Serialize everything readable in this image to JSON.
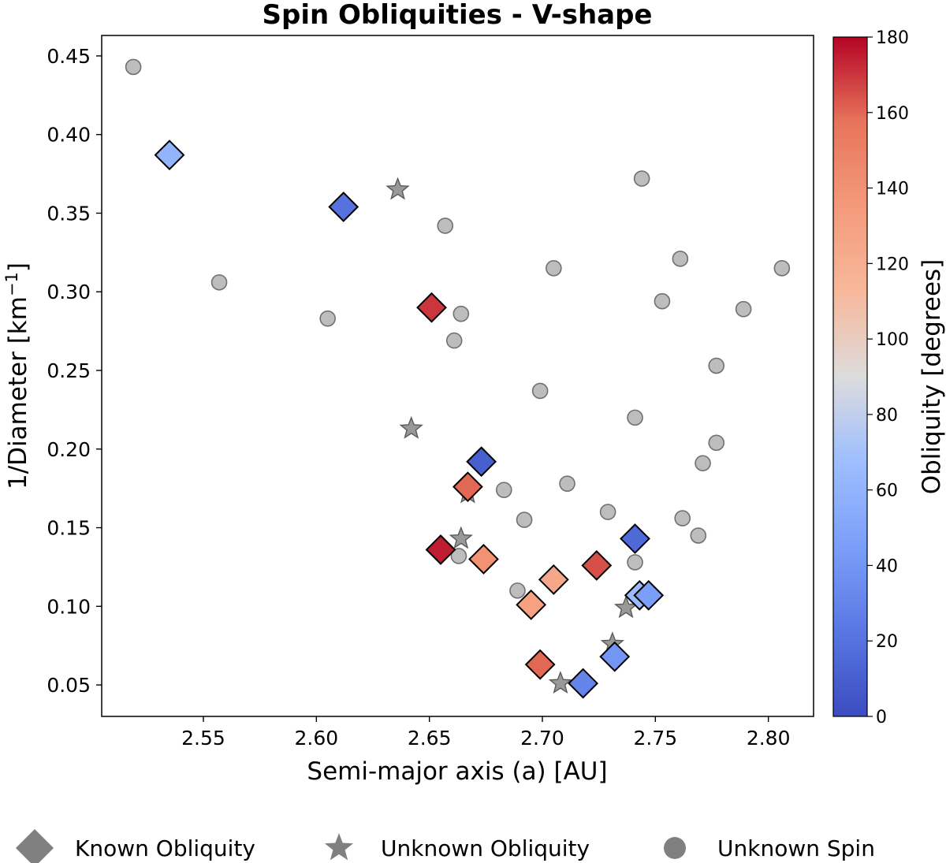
{
  "chart_data": {
    "type": "scatter",
    "title": "Spin Obliquities - V-shape",
    "xlabel": "Semi-major axis (a) [AU]",
    "ylabel": "1/Diameter [km",
    "ylabel_sup": "−1",
    "ylabel_end": "]",
    "xlim": [
      2.505,
      2.82
    ],
    "ylim": [
      0.03,
      0.463
    ],
    "xticks": [
      "2.55",
      "2.60",
      "2.65",
      "2.70",
      "2.75",
      "2.80"
    ],
    "yticks": [
      "0.05",
      "0.10",
      "0.15",
      "0.20",
      "0.25",
      "0.30",
      "0.35",
      "0.40",
      "0.45"
    ],
    "colorbar": {
      "label": "Obliquity [degrees]",
      "range": [
        0,
        180
      ],
      "ticks": [
        "0",
        "20",
        "40",
        "60",
        "80",
        "100",
        "120",
        "140",
        "160",
        "180"
      ],
      "colormap": "coolwarm"
    },
    "legend_placement": "bottom",
    "legend": [
      {
        "marker": "diamond",
        "label": "Known Obliquity"
      },
      {
        "marker": "star",
        "label": "Unknown Obliquity"
      },
      {
        "marker": "circle",
        "label": "Unknown Spin"
      }
    ],
    "series": [
      {
        "name": "Known Obliquity",
        "marker": "diamond",
        "points": [
          {
            "x": 2.535,
            "y": 0.387,
            "obliquity": 60
          },
          {
            "x": 2.612,
            "y": 0.354,
            "obliquity": 20
          },
          {
            "x": 2.651,
            "y": 0.29,
            "obliquity": 170
          },
          {
            "x": 2.673,
            "y": 0.192,
            "obliquity": 10
          },
          {
            "x": 2.667,
            "y": 0.176,
            "obliquity": 160
          },
          {
            "x": 2.655,
            "y": 0.136,
            "obliquity": 175
          },
          {
            "x": 2.674,
            "y": 0.13,
            "obliquity": 140
          },
          {
            "x": 2.705,
            "y": 0.117,
            "obliquity": 125
          },
          {
            "x": 2.695,
            "y": 0.101,
            "obliquity": 130
          },
          {
            "x": 2.724,
            "y": 0.126,
            "obliquity": 165
          },
          {
            "x": 2.741,
            "y": 0.143,
            "obliquity": 15
          },
          {
            "x": 2.743,
            "y": 0.107,
            "obliquity": 65
          },
          {
            "x": 2.747,
            "y": 0.107,
            "obliquity": 45
          },
          {
            "x": 2.732,
            "y": 0.068,
            "obliquity": 40
          },
          {
            "x": 2.699,
            "y": 0.063,
            "obliquity": 160
          },
          {
            "x": 2.718,
            "y": 0.051,
            "obliquity": 30
          }
        ]
      },
      {
        "name": "Unknown Obliquity",
        "marker": "star",
        "points": [
          {
            "x": 2.636,
            "y": 0.365
          },
          {
            "x": 2.642,
            "y": 0.213
          },
          {
            "x": 2.667,
            "y": 0.172
          },
          {
            "x": 2.664,
            "y": 0.143
          },
          {
            "x": 2.737,
            "y": 0.099
          },
          {
            "x": 2.731,
            "y": 0.076
          },
          {
            "x": 2.708,
            "y": 0.051
          }
        ]
      },
      {
        "name": "Unknown Spin",
        "marker": "circle",
        "points": [
          {
            "x": 2.519,
            "y": 0.443
          },
          {
            "x": 2.557,
            "y": 0.306
          },
          {
            "x": 2.605,
            "y": 0.283
          },
          {
            "x": 2.657,
            "y": 0.342
          },
          {
            "x": 2.664,
            "y": 0.286
          },
          {
            "x": 2.661,
            "y": 0.269
          },
          {
            "x": 2.683,
            "y": 0.174
          },
          {
            "x": 2.692,
            "y": 0.155
          },
          {
            "x": 2.663,
            "y": 0.132
          },
          {
            "x": 2.689,
            "y": 0.11
          },
          {
            "x": 2.699,
            "y": 0.237
          },
          {
            "x": 2.705,
            "y": 0.315
          },
          {
            "x": 2.711,
            "y": 0.178
          },
          {
            "x": 2.729,
            "y": 0.16
          },
          {
            "x": 2.741,
            "y": 0.128
          },
          {
            "x": 2.744,
            "y": 0.372
          },
          {
            "x": 2.741,
            "y": 0.22
          },
          {
            "x": 2.753,
            "y": 0.294
          },
          {
            "x": 2.761,
            "y": 0.321
          },
          {
            "x": 2.762,
            "y": 0.156
          },
          {
            "x": 2.769,
            "y": 0.145
          },
          {
            "x": 2.771,
            "y": 0.191
          },
          {
            "x": 2.777,
            "y": 0.253
          },
          {
            "x": 2.777,
            "y": 0.204
          },
          {
            "x": 2.789,
            "y": 0.289
          },
          {
            "x": 2.806,
            "y": 0.315
          }
        ]
      }
    ]
  }
}
